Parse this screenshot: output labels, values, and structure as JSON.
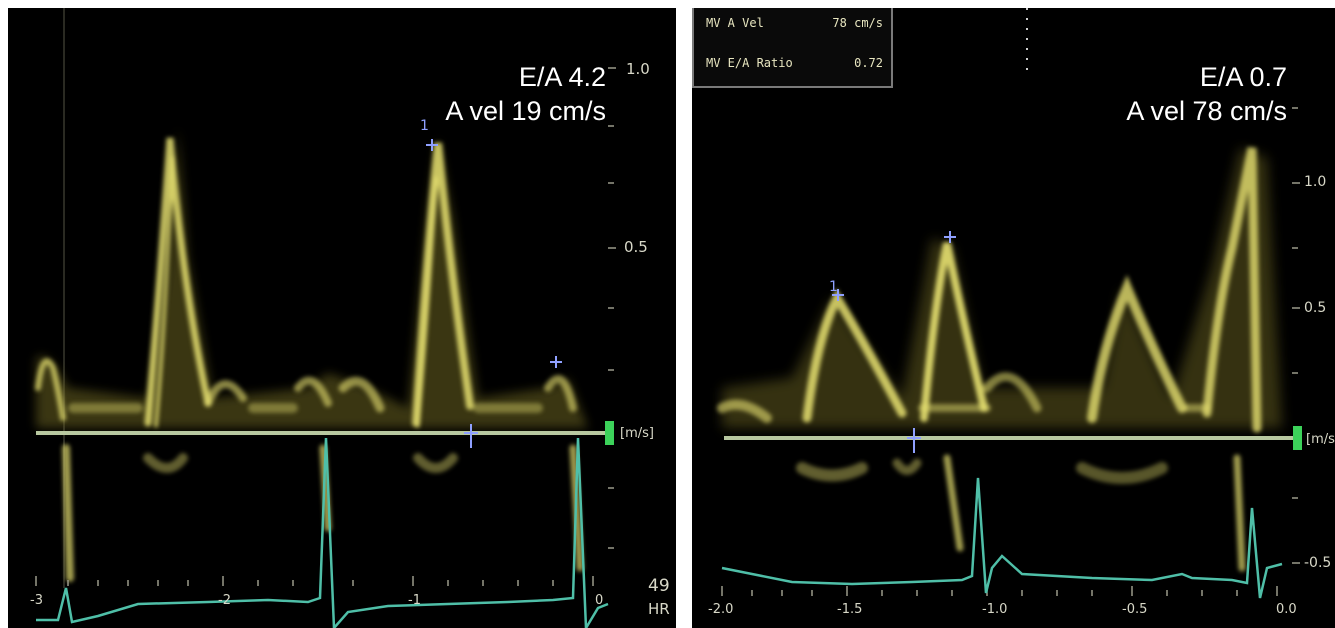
{
  "left": {
    "ratio_label": "E/A 4.2",
    "a_vel_label": "A vel 19 cm/s",
    "scale": [
      "1.0",
      "0.5",
      "[m/s]"
    ],
    "hr_value": "49",
    "hr_label": "HR",
    "time_marks": [
      "-3",
      "-2",
      "-1",
      "0"
    ]
  },
  "right": {
    "infobox": {
      "row1_label": "MV A Vel",
      "row1_value": "78 cm/s",
      "row2_label": "MV E/A Ratio",
      "row2_value": "0.72"
    },
    "ratio_label": "E/A 0.7",
    "a_vel_label": "A vel 78 cm/s",
    "scale": [
      "1.0",
      "0.5",
      "[m/s]",
      "-0.5"
    ],
    "time_axis": [
      "-2.0",
      "-1.5",
      "-1.0",
      "-0.5",
      "0.0"
    ]
  },
  "colors": {
    "doppler": "#e6e070",
    "baseline": "#b8c8a0",
    "ecg": "#4fbfa8",
    "marker": "#8fa0ff",
    "scale_marker": "#3cd25a"
  }
}
